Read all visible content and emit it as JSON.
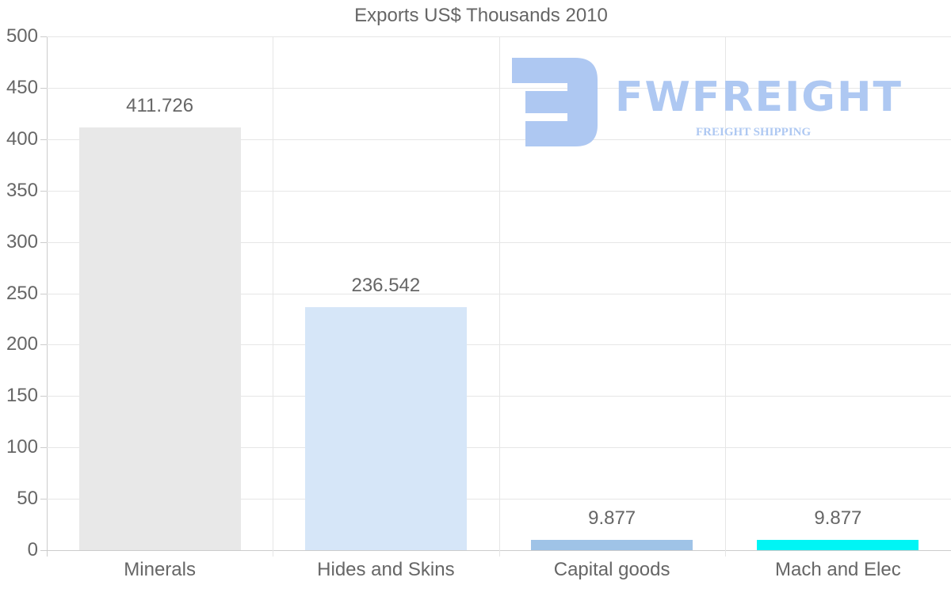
{
  "chart_data": {
    "type": "bar",
    "title": "Exports US$ Thousands 2010",
    "categories": [
      "Minerals",
      "Hides and Skins",
      "Capital goods",
      "Mach and Elec"
    ],
    "values": [
      411.726,
      236.542,
      9.877,
      9.877
    ],
    "value_labels": [
      "411.726",
      "236.542",
      "9.877",
      "9.877"
    ],
    "colors": [
      "#e8e8e8",
      "#d6e6f8",
      "#9fc3e7",
      "#00f5f5"
    ],
    "xlabel": "",
    "ylabel": "",
    "ylim": [
      0,
      500
    ],
    "yticks": [
      "0",
      "50",
      "100",
      "150",
      "200",
      "250",
      "300",
      "350",
      "400",
      "450",
      "500"
    ],
    "grid": true,
    "legend": "none"
  },
  "watermark": {
    "brand": "FWFREIGHT",
    "tagline": "FREIGHT SHIPPING",
    "color": "#aec8f2"
  }
}
